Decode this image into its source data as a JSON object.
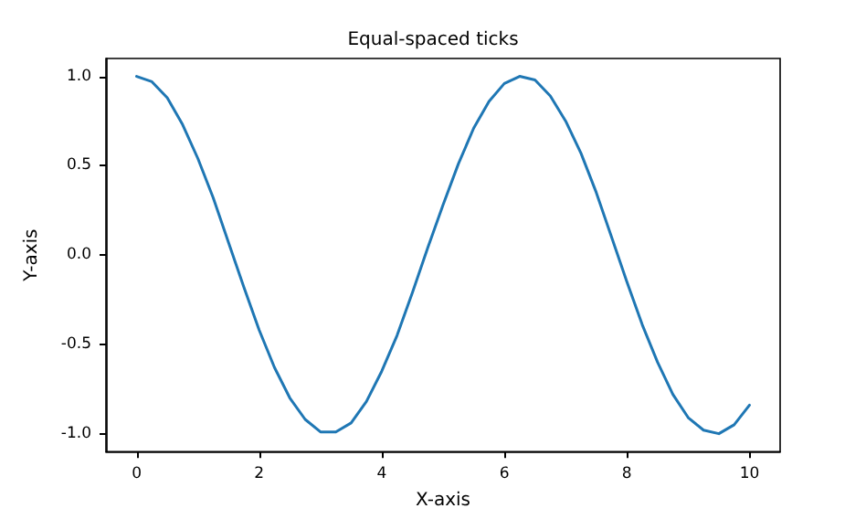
{
  "chart_data": {
    "type": "line",
    "title": "Equal-spaced ticks",
    "xlabel": "X-axis",
    "ylabel": "Y-axis",
    "x": [
      0,
      0.25,
      0.5,
      0.75,
      1,
      1.25,
      1.5,
      1.75,
      2,
      2.25,
      2.5,
      2.75,
      3,
      3.25,
      3.5,
      3.75,
      4,
      4.25,
      4.5,
      4.75,
      5,
      5.25,
      5.5,
      5.75,
      6,
      6.25,
      6.5,
      6.75,
      7,
      7.25,
      7.5,
      7.75,
      8,
      8.25,
      8.5,
      8.75,
      9,
      9.25,
      9.5,
      9.75,
      10
    ],
    "series": [
      {
        "color": "#1f77b4",
        "values": [
          1.0,
          0.97,
          0.88,
          0.73,
          0.54,
          0.32,
          0.07,
          -0.18,
          -0.42,
          -0.63,
          -0.8,
          -0.92,
          -0.99,
          -0.99,
          -0.94,
          -0.82,
          -0.65,
          -0.45,
          -0.21,
          0.04,
          0.28,
          0.51,
          0.71,
          0.86,
          0.96,
          1.0,
          0.98,
          0.89,
          0.75,
          0.57,
          0.35,
          0.1,
          -0.15,
          -0.39,
          -0.6,
          -0.78,
          -0.91,
          -0.98,
          -1.0,
          -0.95,
          -0.84
        ]
      }
    ],
    "xlim": [
      -0.5,
      10.5
    ],
    "xticks": [
      0,
      2,
      4,
      6,
      8,
      10
    ],
    "ylim": [
      -1.1,
      1.1
    ],
    "yticks": [
      {
        "value": -1,
        "label": "-1.0"
      },
      {
        "value": -0.5,
        "label": "-0.5"
      },
      {
        "value": 0,
        "label": "0.0"
      },
      {
        "value": 0.5,
        "label": "0.5"
      },
      {
        "value": 1,
        "label": "1.0"
      }
    ],
    "grid": false,
    "marker": "none",
    "line_style": "solid"
  }
}
